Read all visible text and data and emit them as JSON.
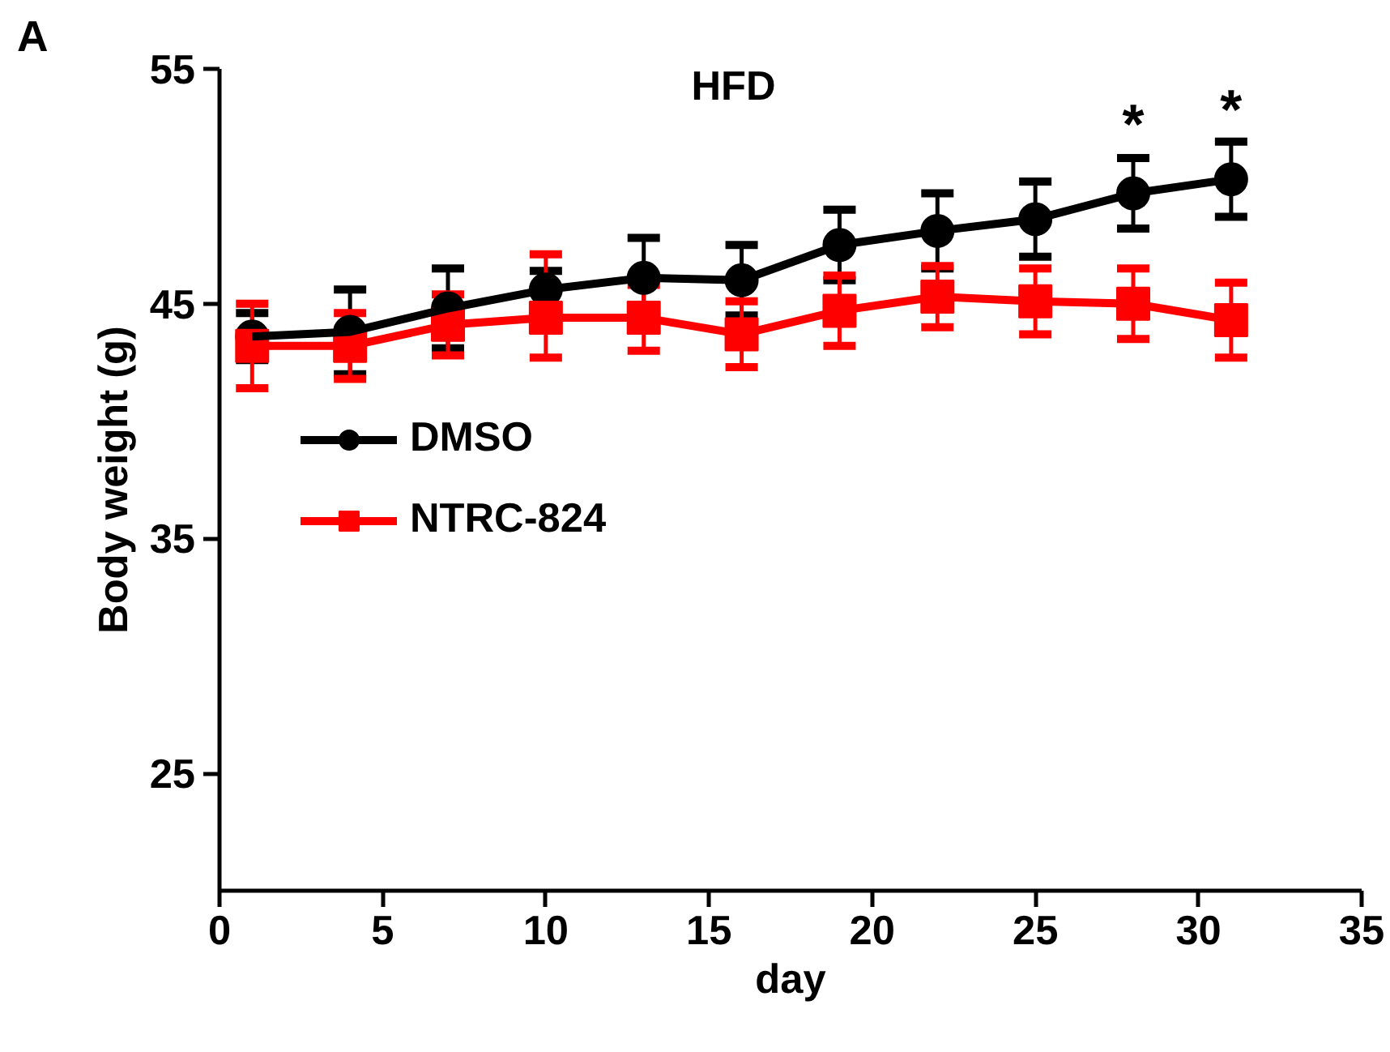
{
  "chart_data": {
    "type": "line",
    "title": "HFD",
    "xlabel": "day",
    "ylabel": "Body weight (g)",
    "x": [
      1,
      4,
      7,
      10,
      13,
      16,
      19,
      22,
      25,
      28,
      31
    ],
    "xlim": [
      0,
      35
    ],
    "xticks": [
      0,
      5,
      10,
      15,
      20,
      25,
      30,
      35
    ],
    "ylim": [
      20,
      55
    ],
    "yticks": [
      25,
      35,
      45,
      55
    ],
    "grid": false,
    "legend": "left",
    "line_style": "solid",
    "series": [
      {
        "name": "DMSO",
        "color": "#000000",
        "marker": "circle",
        "values": [
          43.6,
          43.8,
          44.8,
          45.6,
          46.1,
          46.0,
          47.5,
          48.1,
          48.6,
          49.7,
          50.3
        ],
        "errors": [
          1.0,
          1.8,
          1.7,
          0.8,
          1.7,
          1.5,
          1.5,
          1.6,
          1.6,
          1.5,
          1.6
        ]
      },
      {
        "name": "NTRC-824",
        "color": "#ff0000",
        "marker": "square",
        "values": [
          43.2,
          43.2,
          44.1,
          44.4,
          44.4,
          43.7,
          44.7,
          45.3,
          45.1,
          45.0,
          44.3
        ],
        "errors": [
          1.8,
          1.4,
          1.3,
          [
            42.7,
            47.1
          ],
          1.4,
          1.4,
          1.5,
          1.3,
          1.4,
          1.5,
          1.6
        ]
      }
    ],
    "annotations": [
      "A",
      {
        "text": "*",
        "x": 28,
        "y": 49.7
      },
      {
        "text": "*",
        "x": 31,
        "y": 50.3
      }
    ]
  }
}
